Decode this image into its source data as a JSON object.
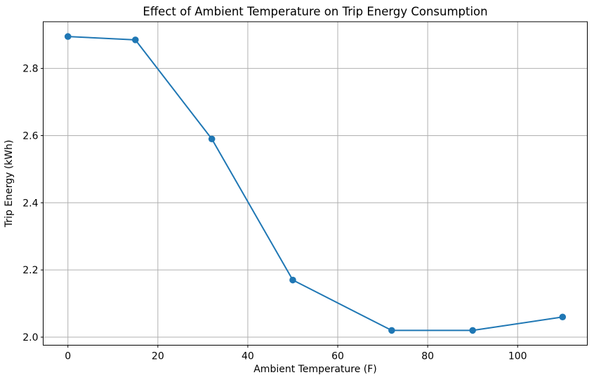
{
  "chart_data": {
    "type": "line",
    "title": "Effect of Ambient Temperature on Trip Energy Consumption",
    "xlabel": "Ambient Temperature (F)",
    "ylabel": "Trip Energy (kWh)",
    "series": [
      {
        "name": "Trip Energy",
        "x": [
          0,
          15,
          32,
          50,
          72,
          90,
          110
        ],
        "y": [
          2.895,
          2.885,
          2.59,
          2.17,
          2.02,
          2.02,
          2.06
        ]
      }
    ],
    "xlim": [
      -5.5,
      115.5
    ],
    "ylim": [
      1.976,
      2.939
    ],
    "xticks": [
      0,
      20,
      40,
      60,
      80,
      100
    ],
    "yticks": [
      2.0,
      2.2,
      2.4,
      2.6,
      2.8
    ],
    "ytick_decimals": 1,
    "grid": true,
    "legend": false,
    "line_color": "#1f77b4",
    "marker": "circle",
    "marker_color": "#1f77b4",
    "grid_color": "#b0b0b0",
    "background_color": "#ffffff",
    "text_color": "#000000"
  }
}
